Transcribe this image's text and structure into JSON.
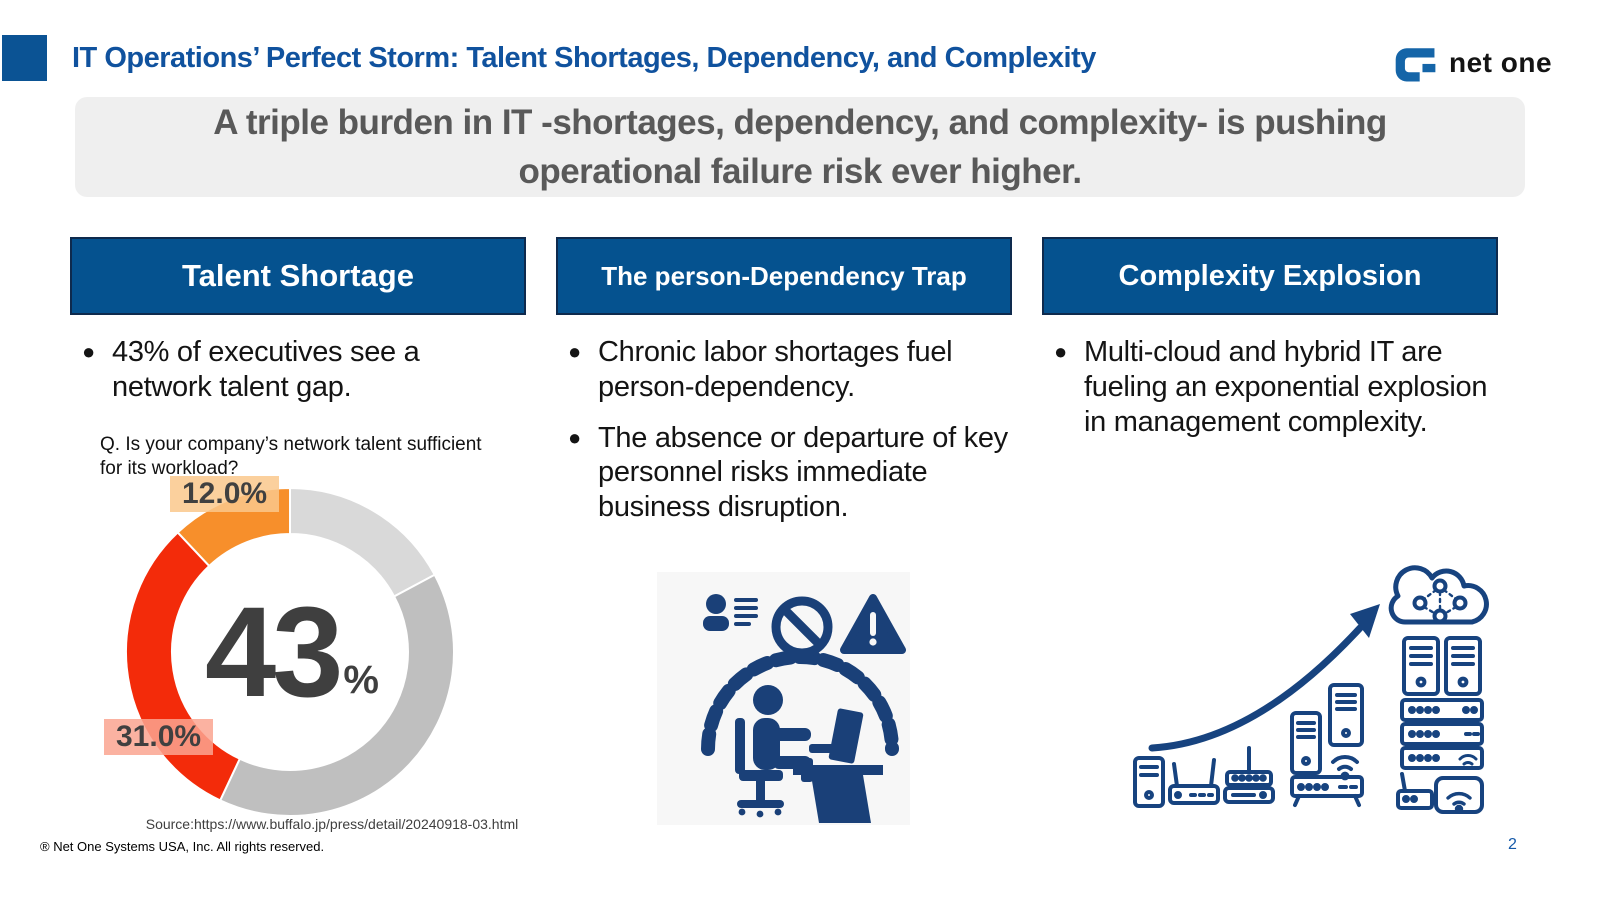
{
  "slide": {
    "title": "IT Operations’ Perfect Storm: Talent Shortages, Dependency, and Complexity",
    "banner": "A triple burden in IT -shortages, dependency, and complexity- is pushing operational failure risk ever higher.",
    "logo_text": "net one",
    "footer": "® Net One Systems USA, Inc. All rights reserved.",
    "page_number": "2"
  },
  "columns": [
    {
      "header": "Talent Shortage",
      "bullets": [
        "43% of executives see a network talent gap."
      ],
      "question": "Q. Is your company’s network talent sufficient for its workload?",
      "source": "Source:https://www.buffalo.jp/press/detail/20240918-03.html"
    },
    {
      "header": "The person-Dependency Trap",
      "bullets": [
        "Chronic labor shortages fuel person-dependency.",
        "The absence or departure of key personnel risks immediate business disruption."
      ]
    },
    {
      "header": "Complexity Explosion",
      "bullets": [
        "Multi-cloud and hybrid IT are fueling an exponential explosion in management complexity."
      ]
    }
  ],
  "chart_data": {
    "type": "pie",
    "subtype": "donut",
    "title": "Q. Is your company’s network talent sufficient for its workload?",
    "center_value": "43",
    "center_unit": "%",
    "direction": "clockwise",
    "start_angle_deg": 0,
    "segments": [
      {
        "label": "",
        "value": 17.2,
        "color": "#d9d9d9"
      },
      {
        "label": "",
        "value": 39.8,
        "color": "#bfbfbf"
      },
      {
        "label": "31.0%",
        "value": 31.0,
        "color": "#f32b0a"
      },
      {
        "label": "12.0%",
        "value": 12.0,
        "color": "#f78f2b"
      }
    ],
    "source": "Source:https://www.buffalo.jp/press/detail/20240918-03.html"
  },
  "icons": {
    "logo_mark": "netone-g-mark-icon",
    "column2_illustration": [
      "profile-list-icon",
      "prohibition-icon",
      "warning-triangle-icon",
      "chain-arc-icon",
      "person-at-desk-icon"
    ],
    "column3_illustration": [
      "tower-pc-icon",
      "router-icon",
      "access-point-icon",
      "server-icon",
      "wifi-icon",
      "rack-switch-icon",
      "growth-arrow-icon",
      "cloud-network-icon"
    ]
  },
  "colors": {
    "accent_blue": "#0b5394",
    "title_blue": "#10529e",
    "header_box_blue": "#05528f",
    "header_box_border": "#0e2a4d",
    "banner_bg": "#efefef",
    "banner_text": "#595959",
    "pictogram_navy": "#1a4078",
    "outline_navy": "#17437f",
    "donut_red": "#f32b0a",
    "donut_orange": "#f78f2b",
    "donut_gray_light": "#d9d9d9",
    "donut_gray": "#bfbfbf"
  }
}
